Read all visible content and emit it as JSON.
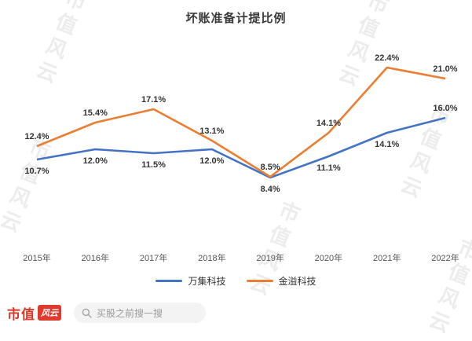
{
  "title": "坏账准备计提比例",
  "watermark": "市值风云",
  "chart_data": {
    "type": "line",
    "title": "坏账准备计提比例",
    "xlabel": "",
    "ylabel": "",
    "ylim": [
      0,
      24
    ],
    "grid": false,
    "legend_position": "bottom",
    "categories": [
      "2015年",
      "2016年",
      "2017年",
      "2018年",
      "2019年",
      "2020年",
      "2021年",
      "2022年"
    ],
    "series": [
      {
        "name": "万集科技",
        "color": "#4472C4",
        "values": [
          10.7,
          12.0,
          11.5,
          12.0,
          8.4,
          11.1,
          14.1,
          16.0
        ],
        "labels": [
          "10.7%",
          "12.0%",
          "11.5%",
          "12.0%",
          "8.4%",
          "11.1%",
          "14.1%",
          "16.0%"
        ],
        "label_placement": [
          "below",
          "below",
          "below",
          "below",
          "below",
          "below",
          "below",
          "above"
        ]
      },
      {
        "name": "金溢科技",
        "color": "#ED7D31",
        "values": [
          12.4,
          15.4,
          17.1,
          13.1,
          8.5,
          14.1,
          22.4,
          21.0
        ],
        "labels": [
          "12.4%",
          "15.4%",
          "17.1%",
          "13.1%",
          "8.5%",
          "14.1%",
          "22.4%",
          "21.0%"
        ],
        "label_placement": [
          "above",
          "above",
          "above",
          "above",
          "above",
          "above",
          "above",
          "above"
        ]
      }
    ]
  },
  "footer": {
    "brand_left": "市值",
    "brand_stamp": "风云",
    "search_placeholder": "买股之前搜一搜"
  }
}
